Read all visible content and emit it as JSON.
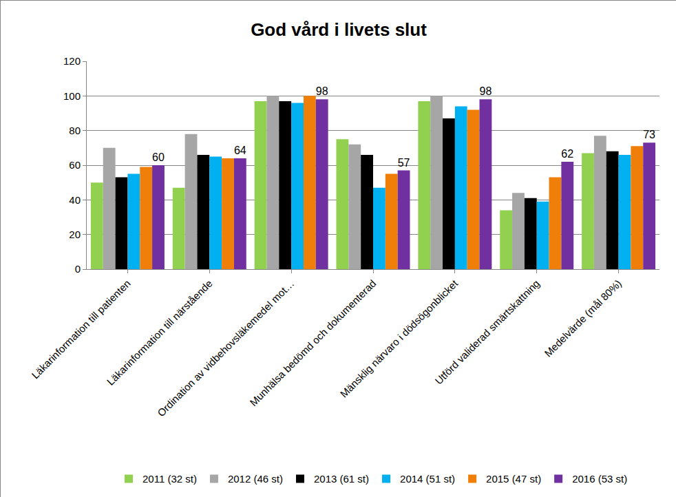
{
  "chart_data": {
    "type": "bar",
    "title": "God vård i livets slut",
    "categories": [
      "Läkarinformation till patienten",
      "Läkarinformation till närstående",
      "Ordination av vidbehovsläkemedel mot…",
      "Munhälsa bedömd och dokumenterad",
      "Mänsklig närvaro i dödsögonblicket",
      "Utförd validerad smärtskattning",
      "Medelvärde (mål 80%)"
    ],
    "series": [
      {
        "name": "2011 (32 st)",
        "color": "#92d050",
        "values": [
          50,
          47,
          97,
          75,
          97,
          34,
          67
        ]
      },
      {
        "name": "2012 (46 st)",
        "color": "#a6a6a6",
        "values": [
          70,
          78,
          100,
          72,
          100,
          44,
          77
        ]
      },
      {
        "name": "2013 (61 st)",
        "color": "#000000",
        "values": [
          53,
          66,
          97,
          66,
          87,
          41,
          68
        ]
      },
      {
        "name": "2014 (51 st)",
        "color": "#00b0f0",
        "values": [
          55,
          65,
          96,
          47,
          94,
          39,
          66
        ]
      },
      {
        "name": "2015 (47 st)",
        "color": "#f07f09",
        "values": [
          59,
          64,
          100,
          55,
          92,
          53,
          71
        ]
      },
      {
        "name": "2016 (53 st)",
        "color": "#7030a0",
        "values": [
          60,
          64,
          98,
          57,
          98,
          62,
          73
        ],
        "data_labels": true
      }
    ],
    "ylim": [
      0,
      120
    ],
    "yticks": [
      0,
      20,
      40,
      60,
      80,
      100,
      120
    ],
    "grid": true,
    "legend": "bottom"
  }
}
